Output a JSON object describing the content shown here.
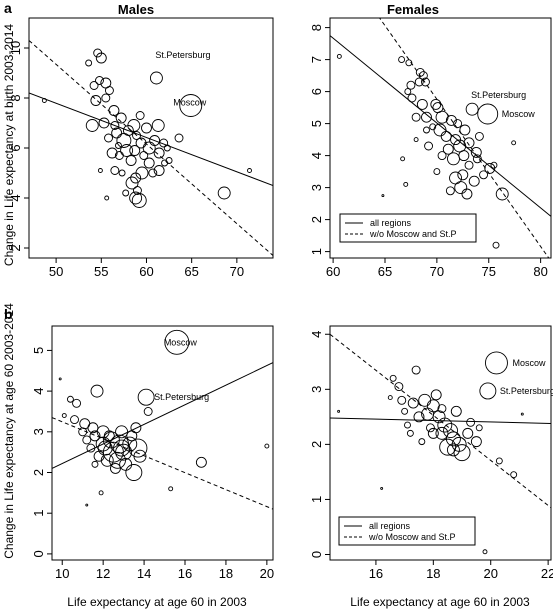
{
  "figure": {
    "panel_a": "a",
    "panel_b": "b",
    "males": "Males",
    "females": "Females",
    "ylabel_a": "Change in Life expectancy at birth 2003-2014",
    "ylabel_b": "Change in Life expectancy at age 60 2003-2014",
    "xlabel_b_left": "Life expectancy at age 60 in 2003",
    "xlabel_b_right": "Life expectancy at age 60 in 2003"
  },
  "chart_data": [
    {
      "type": "scatter",
      "panel": "a-males",
      "xlim": [
        47,
        74
      ],
      "ylim": [
        1.6,
        11.2
      ],
      "xticks": [
        50,
        55,
        60,
        65,
        70
      ],
      "yticks": [
        2,
        4,
        6,
        8,
        10
      ],
      "fit_all": [
        [
          47,
          8.2
        ],
        [
          74,
          4.5
        ]
      ],
      "fit_wo": [
        [
          47,
          10.3
        ],
        [
          74,
          1.7
        ]
      ],
      "legend": [],
      "annotations": [
        {
          "text": "St.Petersburg",
          "x": 61.1,
          "y": 8.8,
          "anchor_x": 61.1,
          "anchor_y": 8.8
        },
        {
          "text": "Moscow",
          "x": 64.9,
          "y": 7.7,
          "anchor_x": 64.9,
          "anchor_y": 7.7
        }
      ],
      "points": [
        [
          61.1,
          8.8,
          6
        ],
        [
          64.9,
          7.7,
          11
        ],
        [
          48.7,
          7.9,
          2
        ],
        [
          53.6,
          9.4,
          3
        ],
        [
          54.6,
          9.8,
          4
        ],
        [
          55.0,
          9.6,
          5
        ],
        [
          54.8,
          8.7,
          4
        ],
        [
          55.5,
          8.6,
          5
        ],
        [
          54.2,
          8.5,
          4
        ],
        [
          55.9,
          8.3,
          4
        ],
        [
          54.4,
          7.9,
          5
        ],
        [
          55.5,
          8.0,
          4
        ],
        [
          56.4,
          7.5,
          5
        ],
        [
          54.0,
          6.9,
          6
        ],
        [
          55.3,
          7.0,
          5
        ],
        [
          56.5,
          6.9,
          4
        ],
        [
          57.2,
          7.2,
          5
        ],
        [
          56.7,
          6.6,
          5
        ],
        [
          57.5,
          6.3,
          7
        ],
        [
          58.0,
          6.7,
          5
        ],
        [
          58.6,
          6.9,
          6
        ],
        [
          58.9,
          6.5,
          4
        ],
        [
          59.4,
          6.2,
          5
        ],
        [
          57.8,
          5.9,
          6
        ],
        [
          58.3,
          5.5,
          5
        ],
        [
          58.7,
          5.9,
          5
        ],
        [
          59.7,
          5.7,
          4
        ],
        [
          60.3,
          6.0,
          6
        ],
        [
          60.9,
          6.3,
          5
        ],
        [
          61.3,
          6.9,
          6
        ],
        [
          61.9,
          6.2,
          4
        ],
        [
          61.4,
          5.8,
          5
        ],
        [
          60.3,
          5.4,
          5
        ],
        [
          60.7,
          5.0,
          4
        ],
        [
          61.4,
          5.1,
          5
        ],
        [
          62.0,
          5.4,
          3
        ],
        [
          59.5,
          5.0,
          6
        ],
        [
          58.8,
          4.8,
          5
        ],
        [
          58.4,
          4.6,
          6
        ],
        [
          59.0,
          4.3,
          4
        ],
        [
          58.8,
          4.0,
          6
        ],
        [
          59.2,
          3.9,
          7
        ],
        [
          57.7,
          4.2,
          3
        ],
        [
          56.5,
          5.1,
          4
        ],
        [
          55.6,
          4.0,
          2
        ],
        [
          55.8,
          6.4,
          4
        ],
        [
          56.2,
          5.8,
          5
        ],
        [
          57.0,
          5.7,
          4
        ],
        [
          62.3,
          6.0,
          3
        ],
        [
          63.6,
          6.4,
          4
        ],
        [
          68.6,
          4.2,
          6
        ],
        [
          71.4,
          5.1,
          2
        ],
        [
          56.9,
          6.1,
          3
        ],
        [
          59.3,
          7.3,
          4
        ],
        [
          60.0,
          6.8,
          5
        ],
        [
          54.9,
          5.1,
          2
        ],
        [
          57.3,
          5.0,
          3
        ],
        [
          62.5,
          5.5,
          3
        ]
      ]
    },
    {
      "type": "scatter",
      "panel": "a-females",
      "xlim": [
        59.7,
        81
      ],
      "ylim": [
        0.8,
        8.3
      ],
      "xticks": [
        60,
        65,
        70,
        75,
        80
      ],
      "yticks": [
        1,
        2,
        3,
        4,
        5,
        6,
        7,
        8
      ],
      "fit_all": [
        [
          59.7,
          7.75
        ],
        [
          81,
          2.1
        ]
      ],
      "fit_wo": [
        [
          59.7,
          10.5
        ],
        [
          81,
          0.7
        ]
      ],
      "legend": [
        {
          "dash": "solid",
          "label": "all regions"
        },
        {
          "dash": "dashed",
          "label": "w/o Moscow and St.P"
        }
      ],
      "annotations": [
        {
          "text": "St.Petersburg",
          "x": 73.4,
          "y": 5.45,
          "anchor_x": 73.4,
          "anchor_y": 5.45
        },
        {
          "text": "Moscow",
          "x": 74.9,
          "y": 5.3,
          "anchor_x": 74.9,
          "anchor_y": 5.3
        }
      ],
      "points": [
        [
          73.4,
          5.45,
          6
        ],
        [
          74.9,
          5.3,
          10
        ],
        [
          60.6,
          7.1,
          2
        ],
        [
          68.4,
          6.6,
          4
        ],
        [
          68.7,
          6.5,
          4
        ],
        [
          68.3,
          6.3,
          4
        ],
        [
          68.9,
          6.3,
          4
        ],
        [
          67.5,
          6.2,
          4
        ],
        [
          67.2,
          6.0,
          3
        ],
        [
          66.6,
          7.0,
          3
        ],
        [
          67.3,
          6.9,
          3
        ],
        [
          67.6,
          5.8,
          4
        ],
        [
          68.6,
          5.6,
          5
        ],
        [
          69.9,
          5.6,
          5
        ],
        [
          70.1,
          5.5,
          5
        ],
        [
          68.0,
          5.2,
          4
        ],
        [
          69.0,
          5.2,
          5
        ],
        [
          70.5,
          5.2,
          6
        ],
        [
          71.4,
          5.1,
          5
        ],
        [
          70.3,
          4.8,
          6
        ],
        [
          70.9,
          4.6,
          5
        ],
        [
          71.8,
          4.5,
          5
        ],
        [
          72.2,
          4.3,
          6
        ],
        [
          71.1,
          4.2,
          5
        ],
        [
          70.5,
          4.0,
          4
        ],
        [
          71.6,
          3.9,
          6
        ],
        [
          72.6,
          4.0,
          5
        ],
        [
          73.1,
          3.7,
          4
        ],
        [
          72.5,
          3.4,
          5
        ],
        [
          71.8,
          3.3,
          6
        ],
        [
          72.3,
          3.0,
          6
        ],
        [
          71.3,
          2.9,
          4
        ],
        [
          72.9,
          2.8,
          5
        ],
        [
          73.6,
          3.2,
          5
        ],
        [
          73.9,
          3.9,
          4
        ],
        [
          74.5,
          3.4,
          4
        ],
        [
          75.1,
          3.6,
          5
        ],
        [
          75.5,
          3.7,
          3
        ],
        [
          76.3,
          2.8,
          6
        ],
        [
          77.4,
          4.4,
          2
        ],
        [
          75.7,
          1.2,
          3
        ],
        [
          69.2,
          4.3,
          4
        ],
        [
          69.0,
          4.8,
          3
        ],
        [
          68.0,
          4.5,
          2
        ],
        [
          66.7,
          3.9,
          2
        ],
        [
          67.0,
          3.1,
          2
        ],
        [
          64.8,
          2.75,
          1
        ],
        [
          70.0,
          3.5,
          3
        ],
        [
          73.1,
          4.4,
          5
        ],
        [
          72.7,
          4.8,
          5
        ],
        [
          72.0,
          5.0,
          4
        ],
        [
          69.6,
          4.9,
          3
        ],
        [
          73.8,
          4.1,
          5
        ],
        [
          74.1,
          4.6,
          4
        ]
      ]
    },
    {
      "type": "scatter",
      "panel": "b-males",
      "xlim": [
        9.5,
        20.3
      ],
      "ylim": [
        -0.15,
        5.6
      ],
      "xticks": [
        10,
        12,
        14,
        16,
        18,
        20
      ],
      "yticks": [
        0,
        1,
        2,
        3,
        4,
        5
      ],
      "fit_all": [
        [
          9.5,
          2.1
        ],
        [
          20.3,
          4.7
        ]
      ],
      "fit_wo": [
        [
          9.5,
          3.35
        ],
        [
          20.3,
          1.1
        ]
      ],
      "legend": [],
      "annotations": [
        {
          "text": "Moscow",
          "x": 15.6,
          "y": 5.2,
          "anchor_x": 15.6,
          "anchor_y": 5.2
        },
        {
          "text": "St.Petersburg",
          "x": 14.1,
          "y": 3.85,
          "anchor_x": 14.1,
          "anchor_y": 3.85
        }
      ],
      "points": [
        [
          15.6,
          5.2,
          12
        ],
        [
          14.1,
          3.85,
          8
        ],
        [
          9.9,
          4.3,
          1
        ],
        [
          10.4,
          3.8,
          3
        ],
        [
          10.7,
          3.7,
          4
        ],
        [
          11.7,
          4.0,
          6
        ],
        [
          10.6,
          3.3,
          4
        ],
        [
          11.1,
          3.2,
          5
        ],
        [
          11.5,
          3.1,
          5
        ],
        [
          11.0,
          3.0,
          4
        ],
        [
          11.6,
          2.9,
          5
        ],
        [
          12.0,
          3.0,
          6
        ],
        [
          12.4,
          2.8,
          8
        ],
        [
          12.8,
          2.7,
          9
        ],
        [
          12.1,
          2.6,
          7
        ],
        [
          12.5,
          2.5,
          10
        ],
        [
          13.0,
          2.5,
          8
        ],
        [
          13.3,
          2.7,
          7
        ],
        [
          13.7,
          2.6,
          9
        ],
        [
          12.7,
          2.3,
          8
        ],
        [
          12.2,
          2.3,
          6
        ],
        [
          13.1,
          2.2,
          6
        ],
        [
          13.5,
          2.0,
          8
        ],
        [
          11.8,
          2.4,
          5
        ],
        [
          11.4,
          2.6,
          4
        ],
        [
          12.3,
          2.9,
          5
        ],
        [
          12.9,
          3.0,
          6
        ],
        [
          13.6,
          3.1,
          5
        ],
        [
          14.2,
          3.5,
          4
        ],
        [
          11.2,
          2.8,
          4
        ],
        [
          12.6,
          2.1,
          5
        ],
        [
          11.9,
          1.5,
          2
        ],
        [
          11.2,
          1.2,
          1
        ],
        [
          15.3,
          1.6,
          2
        ],
        [
          16.8,
          2.25,
          5
        ],
        [
          20.0,
          2.65,
          2
        ],
        [
          10.1,
          3.4,
          2
        ],
        [
          12.0,
          2.7,
          7
        ],
        [
          13.4,
          2.9,
          5
        ],
        [
          13.8,
          2.4,
          6
        ],
        [
          12.9,
          2.6,
          8
        ],
        [
          11.6,
          2.2,
          3
        ]
      ]
    },
    {
      "type": "scatter",
      "panel": "b-females",
      "xlim": [
        14.4,
        22.1
      ],
      "ylim": [
        -0.1,
        4.15
      ],
      "xticks": [
        16,
        18,
        20,
        22
      ],
      "yticks": [
        0,
        1,
        2,
        3,
        4
      ],
      "fit_all": [
        [
          14.4,
          2.48
        ],
        [
          22.1,
          2.38
        ]
      ],
      "fit_wo": [
        [
          14.4,
          4.0
        ],
        [
          22.1,
          0.85
        ]
      ],
      "legend": [
        {
          "dash": "solid",
          "label": "all regions"
        },
        {
          "dash": "dashed",
          "label": "w/o Moscow and St.P"
        }
      ],
      "annotations": [
        {
          "text": "Moscow",
          "x": 20.2,
          "y": 3.48,
          "anchor_x": 20.2,
          "anchor_y": 3.48
        },
        {
          "text": "St.Petersburg",
          "x": 19.9,
          "y": 2.97,
          "anchor_x": 19.9,
          "anchor_y": 2.97
        }
      ],
      "points": [
        [
          20.2,
          3.48,
          11
        ],
        [
          19.9,
          2.97,
          8
        ],
        [
          14.7,
          2.6,
          1
        ],
        [
          16.6,
          3.2,
          3
        ],
        [
          16.8,
          3.05,
          4
        ],
        [
          17.4,
          3.35,
          4
        ],
        [
          16.9,
          2.8,
          4
        ],
        [
          17.3,
          2.75,
          5
        ],
        [
          17.7,
          2.8,
          6
        ],
        [
          18.0,
          2.7,
          6
        ],
        [
          17.8,
          2.55,
          6
        ],
        [
          17.5,
          2.5,
          5
        ],
        [
          18.2,
          2.5,
          6
        ],
        [
          18.4,
          2.35,
          7
        ],
        [
          18.6,
          2.25,
          7
        ],
        [
          18.3,
          2.2,
          6
        ],
        [
          18.7,
          2.1,
          7
        ],
        [
          18.9,
          2.0,
          7
        ],
        [
          18.5,
          1.95,
          8
        ],
        [
          19.0,
          1.85,
          8
        ],
        [
          18.7,
          1.9,
          6
        ],
        [
          19.2,
          2.2,
          5
        ],
        [
          19.5,
          2.05,
          5
        ],
        [
          17.9,
          2.3,
          4
        ],
        [
          17.6,
          2.05,
          3
        ],
        [
          17.2,
          2.2,
          3
        ],
        [
          17.1,
          2.35,
          3
        ],
        [
          18.1,
          2.9,
          5
        ],
        [
          18.8,
          2.6,
          5
        ],
        [
          19.3,
          2.4,
          4
        ],
        [
          19.6,
          2.3,
          3
        ],
        [
          20.3,
          1.7,
          3
        ],
        [
          20.8,
          1.45,
          3
        ],
        [
          19.8,
          0.05,
          2
        ],
        [
          16.2,
          1.2,
          1
        ],
        [
          16.5,
          2.85,
          2
        ],
        [
          17.0,
          2.6,
          3
        ],
        [
          18.3,
          2.65,
          4
        ],
        [
          21.1,
          2.55,
          1
        ],
        [
          18.0,
          2.2,
          5
        ]
      ]
    }
  ]
}
